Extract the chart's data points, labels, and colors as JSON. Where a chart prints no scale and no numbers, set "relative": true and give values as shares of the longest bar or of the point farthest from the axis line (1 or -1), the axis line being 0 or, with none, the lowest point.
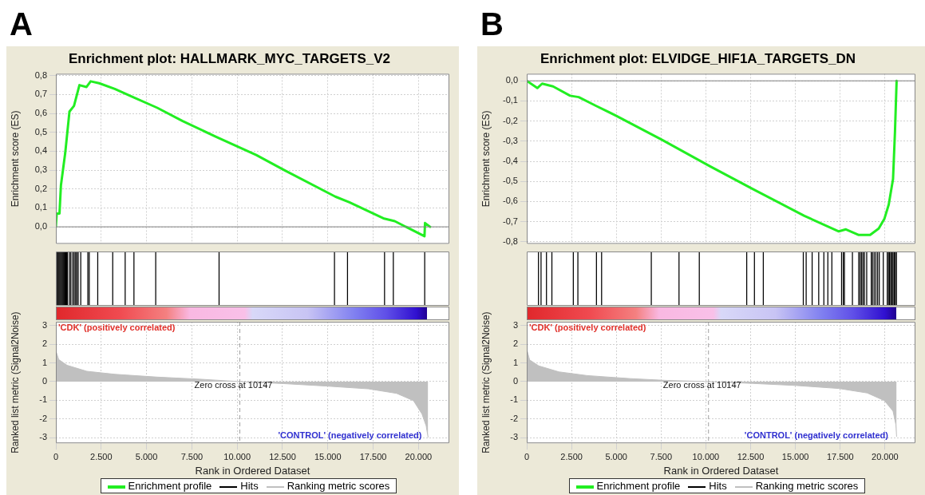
{
  "chart_data": [
    {
      "type": "line",
      "title": "Enrichment plot: HALLMARK_MYC_TARGETS_V2",
      "ylabel": "Enrichment score (ES)",
      "annotations": [
        "A"
      ],
      "series": [
        {
          "name": "Enrichment profile",
          "color": "#22ee22",
          "x": [
            0,
            47,
            200,
            280,
            515,
            750,
            1000,
            1300,
            1690,
            1920,
            2390,
            3250,
            4180,
            5590,
            6990,
            8860,
            11050,
            12600,
            15410,
            16190,
            18060,
            18690,
            20330,
            20360,
            20640
          ],
          "values": [
            0.0,
            0.07,
            0.07,
            0.22,
            0.39,
            0.61,
            0.64,
            0.75,
            0.74,
            0.77,
            0.76,
            0.73,
            0.69,
            0.63,
            0.56,
            0.475,
            0.38,
            0.3,
            0.16,
            0.13,
            0.045,
            0.03,
            -0.05,
            0.02,
            0.0
          ]
        }
      ],
      "xlim": [
        0,
        21700
      ],
      "xticks": [
        {
          "value": 2500,
          "label": null
        },
        {
          "value": 5000,
          "label": null
        },
        {
          "value": 7500,
          "label": null
        },
        {
          "value": 10000,
          "label": null
        },
        {
          "value": 12500,
          "label": null
        },
        {
          "value": 15000,
          "label": null
        },
        {
          "value": 17500,
          "label": null
        },
        {
          "value": 20000,
          "label": null
        }
      ],
      "ylim": [
        -0.09,
        0.81
      ],
      "yticks": [
        {
          "value": 0,
          "label": "0,0"
        },
        {
          "value": 0.1,
          "label": "0,1"
        },
        {
          "value": 0.2,
          "label": "0,2"
        },
        {
          "value": 0.3,
          "label": "0,3"
        },
        {
          "value": 0.4,
          "label": "0,4"
        },
        {
          "value": 0.5,
          "label": "0,5"
        },
        {
          "value": 0.6,
          "label": "0,6"
        },
        {
          "value": 0.7,
          "label": "0,7"
        },
        {
          "value": 0.8,
          "label": "0,8"
        }
      ],
      "ref_lines": [
        {
          "axis": "y",
          "value": 0,
          "color": "#808080"
        }
      ],
      "tick_labels": "y",
      "grid": true,
      "legend": "bottom"
    },
    {
      "type": "bar",
      "relative": true,
      "xlim": [
        0,
        21700
      ],
      "tick_labels": false,
      "legend": "bottom",
      "series": [
        {
          "name": "Hits",
          "color": "#000000",
          "x": [
            78,
            125,
            172,
            218,
            265,
            312,
            359,
            406,
            452,
            499,
            546,
            593,
            640,
            749,
            827,
            936,
            1014,
            1092,
            1154,
            1232,
            1373,
            1763,
            1841,
            2309,
            3136,
            3822,
            4306,
            5507,
            9001,
            15366,
            16084,
            18127,
            18611,
            20342
          ],
          "values": [
            1,
            1,
            1,
            1,
            1,
            1,
            1,
            1,
            1,
            1,
            1,
            1,
            1,
            1,
            1,
            1,
            1,
            1,
            1,
            1,
            1,
            1,
            1,
            1,
            1,
            1,
            1,
            1,
            1,
            1,
            1,
            1,
            1,
            1
          ]
        }
      ]
    },
    {
      "type": "area",
      "xlabel": "Rank in Ordered Dataset",
      "ylabel": "Ranked list metric (Signal2Noise)",
      "annotations": [
        "'CDK' (positively correlated)",
        "'CONTROL' (negatively correlated)"
      ],
      "series": [
        {
          "name": "Ranking metric scores",
          "color": "#c0c0c0",
          "x": [
            0,
            155,
            620,
            1710,
            3260,
            5590,
            7920,
            10100,
            12580,
            14910,
            17240,
            18790,
            19720,
            20190,
            20420,
            20530
          ],
          "values": [
            1.65,
            1.18,
            0.87,
            0.55,
            0.39,
            0.24,
            0.13,
            0,
            -0.11,
            -0.24,
            -0.39,
            -0.63,
            -1.02,
            -1.73,
            -2.36,
            -2.99
          ]
        }
      ],
      "xlim": [
        0,
        21700
      ],
      "xticks": [
        0,
        {
          "value": 2500,
          "label": "2.500"
        },
        {
          "value": 5000,
          "label": "5.000"
        },
        {
          "value": 7500,
          "label": "7.500"
        },
        {
          "value": 10000,
          "label": "10.000"
        },
        {
          "value": 12500,
          "label": "12.500"
        },
        {
          "value": 15000,
          "label": "15.000"
        },
        {
          "value": 17500,
          "label": "17.500"
        },
        {
          "value": 20000,
          "label": "20.000"
        }
      ],
      "ylim": [
        -3.3,
        3.2
      ],
      "yticks": [
        -3,
        -2,
        -1,
        0,
        1,
        2,
        3
      ],
      "ref_lines": [
        {
          "axis": "x",
          "value": 10147,
          "label": "Zero cross at 10147",
          "line_style": "dashed",
          "color": "#a0a0a0"
        }
      ],
      "grid": true,
      "legend": "bottom"
    },
    {
      "type": "line",
      "title": "Enrichment plot: ELVIDGE_HIF1A_TARGETS_DN",
      "ylabel": "Enrichment score (ES)",
      "annotations": [
        "B"
      ],
      "series": [
        {
          "name": "Enrichment profile",
          "color": "#22ee22",
          "x": [
            0,
            590,
            860,
            1470,
            2420,
            2900,
            3860,
            4980,
            7530,
            10240,
            12630,
            15500,
            17420,
            17820,
            18540,
            19170,
            19650,
            19970,
            20210,
            20450,
            20560,
            20650
          ],
          "values": [
            0.0,
            -0.036,
            -0.014,
            -0.028,
            -0.074,
            -0.081,
            -0.124,
            -0.173,
            -0.292,
            -0.425,
            -0.538,
            -0.671,
            -0.748,
            -0.738,
            -0.766,
            -0.766,
            -0.734,
            -0.685,
            -0.615,
            -0.488,
            -0.25,
            0.0
          ]
        }
      ],
      "xlim": [
        0,
        21700
      ],
      "xticks": [
        {
          "value": 2500,
          "label": null
        },
        {
          "value": 5000,
          "label": null
        },
        {
          "value": 7500,
          "label": null
        },
        {
          "value": 10000,
          "label": null
        },
        {
          "value": 12500,
          "label": null
        },
        {
          "value": 15000,
          "label": null
        },
        {
          "value": 17500,
          "label": null
        },
        {
          "value": 20000,
          "label": null
        }
      ],
      "ylim": [
        -0.81,
        0.035
      ],
      "yticks": [
        {
          "value": 0,
          "label": "0,0"
        },
        {
          "value": -0.1,
          "label": "-0,1"
        },
        {
          "value": -0.2,
          "label": "-0,2"
        },
        {
          "value": -0.3,
          "label": "-0,3"
        },
        {
          "value": -0.4,
          "label": "-0,4"
        },
        {
          "value": -0.5,
          "label": "-0,5"
        },
        {
          "value": -0.6,
          "label": "-0,6"
        },
        {
          "value": -0.7,
          "label": "-0,7"
        },
        {
          "value": -0.8,
          "label": "-0,8"
        }
      ],
      "ref_lines": [
        {
          "axis": "y",
          "value": 0,
          "color": "#808080"
        }
      ],
      "tick_labels": "y",
      "grid": true,
      "legend": "bottom"
    },
    {
      "type": "bar",
      "relative": true,
      "xlim": [
        0,
        21700
      ],
      "tick_labels": false,
      "legend": "bottom",
      "series": [
        {
          "name": "Hits",
          "color": "#000000",
          "x": [
            654,
            798,
            1101,
            1404,
            2600,
            2855,
            3892,
            4179,
            6954,
            8501,
            9634,
            12281,
            12712,
            13207,
            15440,
            15600,
            15934,
            16301,
            16588,
            16811,
            17035,
            17577,
            17673,
            17736,
            18183,
            18534,
            18614,
            18693,
            18773,
            18853,
            18980,
            19236,
            19300,
            19395,
            19491,
            19587,
            19682,
            19906,
            20129,
            20193,
            20257,
            20320,
            20384,
            20448,
            20512,
            20576,
            20640
          ],
          "values": [
            1,
            1,
            1,
            1,
            1,
            1,
            1,
            1,
            1,
            1,
            1,
            1,
            1,
            1,
            1,
            1,
            1,
            1,
            1,
            1,
            1,
            1,
            1,
            1,
            1,
            1,
            1,
            1,
            1,
            1,
            1,
            1,
            1,
            1,
            1,
            1,
            1,
            1,
            1,
            1,
            1,
            1,
            1,
            1,
            1,
            1,
            1
          ]
        }
      ]
    },
    {
      "type": "area",
      "xlabel": "Rank in Ordered Dataset",
      "ylabel": "Ranked list metric (Signal2Noise)",
      "annotations": [
        "'CDK' (positively correlated)",
        "'CONTROL' (negatively correlated)"
      ],
      "series": [
        {
          "name": "Ranking metric scores",
          "color": "#c0c0c0",
          "x": [
            0,
            160,
            670,
            1790,
            3380,
            5770,
            7850,
            10080,
            12630,
            15020,
            17420,
            19010,
            19970,
            20450,
            20610,
            20650
          ],
          "values": [
            1.73,
            1.16,
            0.84,
            0.52,
            0.32,
            0.16,
            0.06,
            0,
            -0.1,
            -0.21,
            -0.37,
            -0.61,
            -1.02,
            -1.58,
            -2.31,
            -2.95
          ]
        }
      ],
      "xlim": [
        0,
        21700
      ],
      "xticks": [
        0,
        {
          "value": 2500,
          "label": "2.500"
        },
        {
          "value": 5000,
          "label": "5.000"
        },
        {
          "value": 7500,
          "label": "7.500"
        },
        {
          "value": 10000,
          "label": "10.000"
        },
        {
          "value": 12500,
          "label": "12.500"
        },
        {
          "value": 15000,
          "label": "15.000"
        },
        {
          "value": 17500,
          "label": "17.500"
        },
        {
          "value": 20000,
          "label": "20.000"
        }
      ],
      "ylim": [
        -3.3,
        3.2
      ],
      "yticks": [
        -3,
        -2,
        -1,
        0,
        1,
        2,
        3
      ],
      "ref_lines": [
        {
          "axis": "x",
          "value": 10147,
          "label": "Zero cross at 10147",
          "line_style": "dashed",
          "color": "#a0a0a0"
        }
      ],
      "grid": true,
      "legend": "bottom"
    }
  ]
}
